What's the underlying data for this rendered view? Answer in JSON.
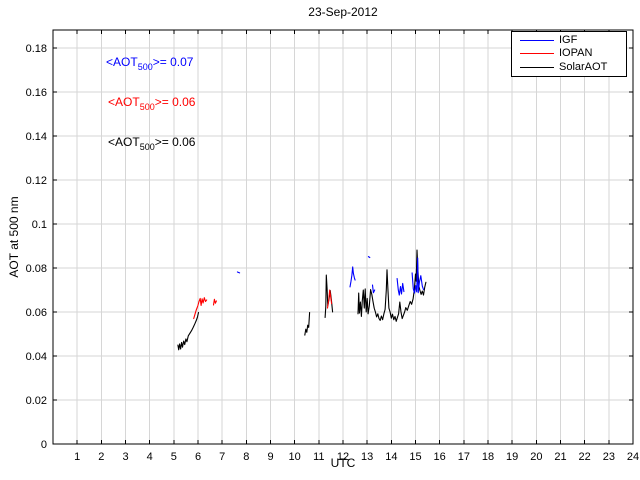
{
  "chart_data": {
    "type": "line",
    "title": "23-Sep-2012",
    "xlabel": "UTC",
    "ylabel": "AOT at 500 nm",
    "xlim": [
      0,
      24
    ],
    "ylim": [
      0,
      0.1882
    ],
    "grid": true,
    "legend_position": "top-right",
    "xticks": [
      1,
      2,
      3,
      4,
      5,
      6,
      7,
      8,
      9,
      10,
      11,
      12,
      13,
      14,
      15,
      16,
      17,
      18,
      19,
      20,
      21,
      22,
      23,
      24
    ],
    "yticks": [
      {
        "v": 0.0,
        "label": "0"
      },
      {
        "v": 0.02,
        "label": "0.02"
      },
      {
        "v": 0.04,
        "label": "0.04"
      },
      {
        "v": 0.06,
        "label": "0.06"
      },
      {
        "v": 0.08,
        "label": "0.08"
      },
      {
        "v": 0.1,
        "label": "0.1"
      },
      {
        "v": 0.12,
        "label": "0.12"
      },
      {
        "v": 0.14,
        "label": "0.14"
      },
      {
        "v": 0.16,
        "label": "0.16"
      },
      {
        "v": 0.18,
        "label": "0.18"
      }
    ],
    "series": [
      {
        "name": "SolarAOT",
        "color": "#000000",
        "mean_aot_500": "0.06",
        "segments": [
          [
            [
              5.17,
              0.045
            ],
            [
              5.2,
              0.0428
            ],
            [
              5.24,
              0.0455
            ],
            [
              5.28,
              0.0432
            ],
            [
              5.32,
              0.0462
            ],
            [
              5.36,
              0.044
            ],
            [
              5.41,
              0.0468
            ],
            [
              5.45,
              0.0452
            ],
            [
              5.5,
              0.0478
            ],
            [
              5.54,
              0.0465
            ],
            [
              5.6,
              0.0492
            ],
            [
              5.66,
              0.0503
            ],
            [
              5.73,
              0.0515
            ],
            [
              5.8,
              0.053
            ],
            [
              5.87,
              0.0547
            ],
            [
              5.93,
              0.0562
            ],
            [
              5.98,
              0.0578
            ],
            [
              6.02,
              0.0598
            ]
          ],
          [
            [
              10.42,
              0.0495
            ],
            [
              10.46,
              0.0522
            ],
            [
              10.5,
              0.0508
            ],
            [
              10.54,
              0.054
            ],
            [
              10.58,
              0.053
            ],
            [
              10.62,
              0.0598
            ]
          ],
          [
            [
              11.26,
              0.0575
            ],
            [
              11.29,
              0.0625
            ],
            [
              11.31,
              0.0768
            ],
            [
              11.34,
              0.0705
            ],
            [
              11.37,
              0.0628
            ],
            [
              11.42,
              0.0658
            ],
            [
              11.47,
              0.0698
            ],
            [
              11.52,
              0.0655
            ],
            [
              11.57,
              0.06
            ]
          ],
          [
            [
              12.62,
              0.0592
            ],
            [
              12.65,
              0.0686
            ],
            [
              12.68,
              0.0595
            ],
            [
              12.72,
              0.0645
            ],
            [
              12.76,
              0.058
            ],
            [
              12.8,
              0.0652
            ],
            [
              12.84,
              0.07
            ],
            [
              12.88,
              0.0618
            ],
            [
              12.92,
              0.0705
            ],
            [
              12.96,
              0.06
            ],
            [
              13.0,
              0.0662
            ],
            [
              13.04,
              0.0592
            ],
            [
              13.09,
              0.0628
            ],
            [
              13.14,
              0.0702
            ],
            [
              13.19,
              0.068
            ],
            [
              13.24,
              0.0648
            ],
            [
              13.29,
              0.0618
            ],
            [
              13.34,
              0.06
            ],
            [
              13.39,
              0.0578
            ],
            [
              13.44,
              0.0592
            ],
            [
              13.49,
              0.057
            ],
            [
              13.54,
              0.0562
            ],
            [
              13.59,
              0.0582
            ],
            [
              13.64,
              0.0565
            ],
            [
              13.69,
              0.059
            ],
            [
              13.74,
              0.0612
            ],
            [
              13.79,
              0.07
            ],
            [
              13.82,
              0.0792
            ],
            [
              13.86,
              0.0705
            ],
            [
              13.9,
              0.0618
            ],
            [
              13.95,
              0.06
            ],
            [
              14.0,
              0.0572
            ],
            [
              14.05,
              0.059
            ],
            [
              14.1,
              0.0565
            ],
            [
              14.15,
              0.058
            ],
            [
              14.2,
              0.0558
            ],
            [
              14.25,
              0.0575
            ],
            [
              14.3,
              0.0592
            ],
            [
              14.35,
              0.0645
            ],
            [
              14.4,
              0.06
            ],
            [
              14.45,
              0.057
            ],
            [
              14.5,
              0.0585
            ],
            [
              14.55,
              0.06
            ],
            [
              14.6,
              0.062
            ],
            [
              14.66,
              0.0608
            ],
            [
              14.72,
              0.0628
            ],
            [
              14.78,
              0.0648
            ],
            [
              14.84,
              0.0635
            ],
            [
              14.9,
              0.066
            ],
            [
              14.95,
              0.07
            ],
            [
              15.0,
              0.0773
            ],
            [
              15.03,
              0.074
            ],
            [
              15.06,
              0.0882
            ],
            [
              15.1,
              0.079
            ],
            [
              15.14,
              0.0718
            ],
            [
              15.18,
              0.07
            ],
            [
              15.23,
              0.068
            ],
            [
              15.28,
              0.0695
            ],
            [
              15.33,
              0.0677
            ],
            [
              15.38,
              0.0712
            ],
            [
              15.43,
              0.0735
            ]
          ]
        ]
      },
      {
        "name": "IOPAN",
        "color": "#ff0000",
        "mean_aot_500": "0.06",
        "segments": [
          [
            [
              5.82,
              0.057
            ],
            [
              5.88,
              0.0592
            ],
            [
              5.93,
              0.061
            ],
            [
              5.99,
              0.0628
            ],
            [
              6.04,
              0.0648
            ],
            [
              6.09,
              0.0662
            ],
            [
              6.13,
              0.063
            ],
            [
              6.17,
              0.066
            ],
            [
              6.21,
              0.0641
            ],
            [
              6.26,
              0.0665
            ],
            [
              6.31,
              0.0648
            ],
            [
              6.36,
              0.0655
            ]
          ],
          [
            [
              6.64,
              0.0632
            ],
            [
              6.68,
              0.0658
            ],
            [
              6.72,
              0.064
            ],
            [
              6.76,
              0.065
            ]
          ],
          [
            [
              11.36,
              0.0618
            ],
            [
              11.41,
              0.0655
            ],
            [
              11.45,
              0.07
            ],
            [
              11.49,
              0.0668
            ],
            [
              11.53,
              0.0638
            ]
          ]
        ]
      },
      {
        "name": "IGF",
        "color": "#0000ff",
        "mean_aot_500": "0.07",
        "segments": [
          [
            [
              7.63,
              0.0782
            ],
            [
              7.72,
              0.0778
            ]
          ],
          [
            [
              12.29,
              0.0714
            ],
            [
              12.33,
              0.074
            ],
            [
              12.37,
              0.0768
            ],
            [
              12.4,
              0.0805
            ],
            [
              12.43,
              0.0775
            ],
            [
              12.47,
              0.0755
            ],
            [
              12.5,
              0.0745
            ]
          ],
          [
            [
              13.05,
              0.0852
            ],
            [
              13.11,
              0.0848
            ]
          ],
          [
            [
              13.22,
              0.0723
            ],
            [
              13.26,
              0.0688
            ],
            [
              13.31,
              0.07
            ]
          ],
          [
            [
              14.24,
              0.0752
            ],
            [
              14.29,
              0.07
            ],
            [
              14.33,
              0.0677
            ],
            [
              14.38,
              0.0716
            ],
            [
              14.42,
              0.0682
            ],
            [
              14.47,
              0.073
            ],
            [
              14.52,
              0.0693
            ]
          ],
          [
            [
              14.86,
              0.0778
            ],
            [
              14.91,
              0.0705
            ],
            [
              14.96,
              0.0686
            ],
            [
              15.01,
              0.072
            ],
            [
              15.05,
              0.0692
            ],
            [
              15.09,
              0.0845
            ],
            [
              15.11,
              0.0688
            ],
            [
              15.16,
              0.0735
            ],
            [
              15.22,
              0.0765
            ],
            [
              15.28,
              0.0718
            ],
            [
              15.33,
              0.0702
            ]
          ]
        ]
      }
    ]
  },
  "legend": {
    "entries": [
      {
        "label": "IGF",
        "color": "#0000ff"
      },
      {
        "label": "IOPAN",
        "color": "#ff0000"
      },
      {
        "label": "SolarAOT",
        "color": "#000000"
      }
    ]
  },
  "annotations": [
    {
      "prefix": "<AOT",
      "sub": "500",
      "suffix": ">= 0.07",
      "color": "#0000ff"
    },
    {
      "prefix": "<AOT",
      "sub": "500",
      "suffix": ">= 0.06",
      "color": "#ff0000"
    },
    {
      "prefix": "<AOT",
      "sub": "500",
      "suffix": ">= 0.06",
      "color": "#000000"
    }
  ],
  "style": {
    "grid_color": "#d6d6d6",
    "axis_color": "#000000",
    "tick_font_px": 11
  }
}
